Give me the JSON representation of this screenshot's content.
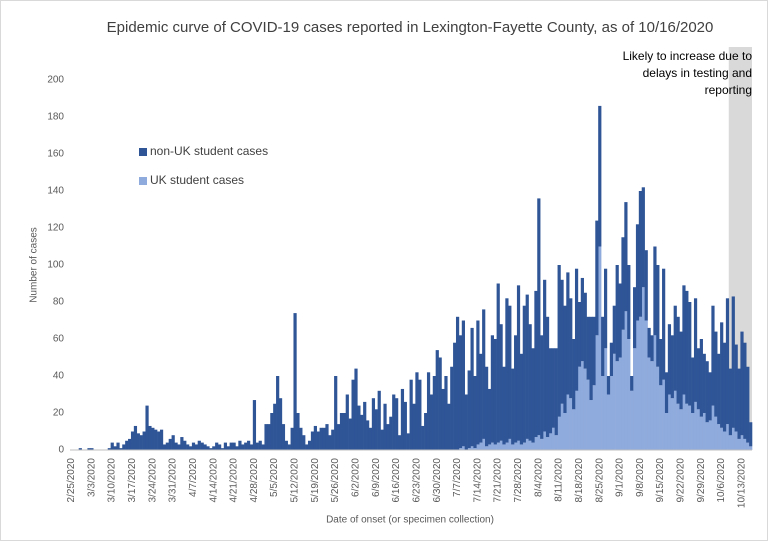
{
  "chart_data": {
    "type": "bar",
    "stacked": true,
    "title": "Epidemic curve of COVID-19 cases reported in Lexington-Fayette County, as of 10/16/2020",
    "y_label": "Number of cases",
    "x_label": "Date of onset (or specimen collection)",
    "annotation": [
      "Likely to increase due to",
      "delays in testing and",
      "reporting"
    ],
    "ylim": [
      0,
      200
    ],
    "yticks": [
      0,
      20,
      40,
      60,
      80,
      100,
      120,
      140,
      160,
      180,
      200
    ],
    "grid": false,
    "categories": [
      "2/25/2020",
      null,
      null,
      null,
      null,
      null,
      null,
      "3/3/2020",
      null,
      null,
      null,
      null,
      null,
      null,
      "3/10/2020",
      null,
      null,
      null,
      null,
      null,
      null,
      "3/17/2020",
      null,
      null,
      null,
      null,
      null,
      null,
      "3/24/2020",
      null,
      null,
      null,
      null,
      null,
      null,
      "3/31/2020",
      null,
      null,
      null,
      null,
      null,
      null,
      "4/7/2020",
      null,
      null,
      null,
      null,
      null,
      null,
      "4/14/2020",
      null,
      null,
      null,
      null,
      null,
      null,
      "4/21/2020",
      null,
      null,
      null,
      null,
      null,
      null,
      "4/28/2020",
      null,
      null,
      null,
      null,
      null,
      null,
      "5/5/2020",
      null,
      null,
      null,
      null,
      null,
      null,
      "5/12/2020",
      null,
      null,
      null,
      null,
      null,
      null,
      "5/19/2020",
      null,
      null,
      null,
      null,
      null,
      null,
      "5/26/2020",
      null,
      null,
      null,
      null,
      null,
      null,
      "6/2/2020",
      null,
      null,
      null,
      null,
      null,
      null,
      "6/9/2020",
      null,
      null,
      null,
      null,
      null,
      null,
      "6/16/2020",
      null,
      null,
      null,
      null,
      null,
      null,
      "6/23/2020",
      null,
      null,
      null,
      null,
      null,
      null,
      "6/30/2020",
      null,
      null,
      null,
      null,
      null,
      null,
      "7/7/2020",
      null,
      null,
      null,
      null,
      null,
      null,
      "7/14/2020",
      null,
      null,
      null,
      null,
      null,
      null,
      "7/21/2020",
      null,
      null,
      null,
      null,
      null,
      null,
      "7/28/2020",
      null,
      null,
      null,
      null,
      null,
      null,
      "8/4/2020",
      null,
      null,
      null,
      null,
      null,
      null,
      "8/11/2020",
      null,
      null,
      null,
      null,
      null,
      null,
      "8/18/2020",
      null,
      null,
      null,
      null,
      null,
      null,
      "8/25/2020",
      null,
      null,
      null,
      null,
      null,
      null,
      "9/1/2020",
      null,
      null,
      null,
      null,
      null,
      null,
      "9/8/2020",
      null,
      null,
      null,
      null,
      null,
      null,
      "9/15/2020",
      null,
      null,
      null,
      null,
      null,
      null,
      "9/22/2020",
      null,
      null,
      null,
      null,
      null,
      null,
      "9/29/2020",
      null,
      null,
      null,
      null,
      null,
      null,
      "10/6/2020",
      null,
      null,
      null,
      null,
      null,
      null,
      "10/13/2020",
      null,
      null,
      null
    ],
    "series": [
      {
        "name": "UK student cases",
        "color": "#8faadc",
        "values": [
          0,
          0,
          0,
          0,
          0,
          0,
          0,
          0,
          0,
          0,
          0,
          0,
          0,
          0,
          0,
          0,
          0,
          0,
          0,
          0,
          0,
          0,
          0,
          0,
          0,
          0,
          0,
          0,
          0,
          0,
          0,
          0,
          0,
          0,
          0,
          0,
          0,
          0,
          0,
          0,
          0,
          0,
          0,
          0,
          0,
          0,
          0,
          0,
          0,
          0,
          0,
          0,
          0,
          0,
          0,
          0,
          0,
          0,
          0,
          0,
          0,
          0,
          0,
          0,
          0,
          0,
          0,
          0,
          0,
          0,
          0,
          0,
          0,
          0,
          0,
          0,
          0,
          0,
          0,
          0,
          0,
          0,
          0,
          0,
          0,
          0,
          0,
          0,
          0,
          0,
          0,
          0,
          0,
          0,
          0,
          0,
          0,
          0,
          0,
          0,
          0,
          0,
          0,
          0,
          0,
          0,
          0,
          0,
          0,
          0,
          0,
          0,
          0,
          0,
          0,
          0,
          0,
          0,
          0,
          0,
          0,
          0,
          0,
          0,
          0,
          0,
          0,
          0,
          0,
          0,
          0,
          0,
          0,
          0,
          1,
          2,
          0,
          1,
          2,
          1,
          3,
          4,
          6,
          2,
          3,
          4,
          3,
          4,
          5,
          3,
          4,
          6,
          3,
          4,
          5,
          3,
          4,
          6,
          5,
          4,
          7,
          8,
          6,
          10,
          7,
          9,
          12,
          8,
          18,
          25,
          20,
          30,
          28,
          22,
          32,
          45,
          48,
          44,
          38,
          27,
          35,
          62,
          110,
          40,
          55,
          30,
          40,
          52,
          48,
          50,
          65,
          75,
          60,
          32,
          55,
          70,
          72,
          88,
          70,
          50,
          48,
          62,
          45,
          35,
          38,
          20,
          30,
          28,
          32,
          25,
          22,
          30,
          25,
          24,
          20,
          26,
          22,
          18,
          20,
          15,
          16,
          24,
          18,
          14,
          12,
          10,
          14,
          8,
          12,
          10,
          6,
          8,
          6,
          4,
          2
        ]
      },
      {
        "name": "non-UK student cases",
        "color": "#2f5597",
        "values": [
          0,
          0,
          0,
          1,
          0,
          0,
          1,
          1,
          0,
          0,
          0,
          0,
          0,
          1,
          4,
          2,
          4,
          1,
          3,
          5,
          6,
          10,
          13,
          9,
          8,
          10,
          24,
          13,
          12,
          11,
          10,
          11,
          3,
          4,
          6,
          8,
          4,
          3,
          7,
          5,
          3,
          2,
          4,
          3,
          5,
          4,
          3,
          2,
          1,
          2,
          4,
          3,
          1,
          4,
          2,
          4,
          4,
          2,
          5,
          3,
          4,
          5,
          3,
          27,
          4,
          5,
          3,
          14,
          14,
          20,
          25,
          40,
          28,
          14,
          5,
          3,
          12,
          74,
          20,
          12,
          8,
          3,
          5,
          10,
          13,
          10,
          12,
          12,
          14,
          8,
          11,
          40,
          14,
          20,
          20,
          30,
          17,
          38,
          44,
          24,
          19,
          26,
          16,
          12,
          28,
          22,
          32,
          11,
          25,
          14,
          18,
          30,
          28,
          8,
          33,
          26,
          9,
          38,
          25,
          42,
          38,
          13,
          20,
          42,
          30,
          40,
          54,
          50,
          33,
          40,
          25,
          45,
          58,
          72,
          61,
          68,
          30,
          42,
          64,
          39,
          67,
          48,
          70,
          43,
          30,
          58,
          57,
          86,
          63,
          42,
          78,
          72,
          41,
          58,
          84,
          49,
          74,
          78,
          63,
          51,
          79,
          128,
          56,
          82,
          65,
          46,
          43,
          47,
          82,
          67,
          58,
          66,
          54,
          38,
          66,
          35,
          45,
          41,
          34,
          45,
          37,
          62,
          76,
          32,
          43,
          10,
          18,
          26,
          52,
          40,
          50,
          59,
          40,
          8,
          33,
          52,
          68,
          54,
          38,
          16,
          14,
          48,
          55,
          25,
          60,
          22,
          38,
          34,
          46,
          47,
          42,
          59,
          61,
          56,
          30,
          56,
          33,
          42,
          32,
          33,
          26,
          54,
          46,
          38,
          57,
          48,
          68,
          36,
          71,
          47,
          38,
          56,
          52,
          41,
          13
        ]
      }
    ]
  }
}
